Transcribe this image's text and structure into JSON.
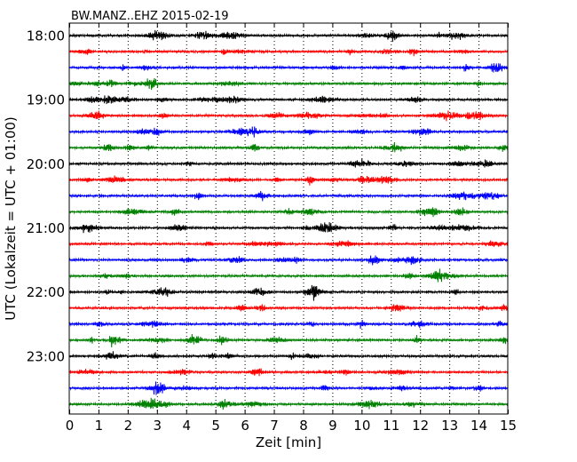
{
  "chart_data": {
    "type": "line",
    "title": "BW.MANZ..EHZ 2015-02-19",
    "xlabel": "Zeit  [min]",
    "ylabel": "UTC (Lokalzeit = UTC + 01:00)",
    "xlim": [
      0,
      15
    ],
    "x_ticks": [
      "0",
      "1",
      "2",
      "3",
      "4",
      "5",
      "6",
      "7",
      "8",
      "9",
      "10",
      "11",
      "12",
      "13",
      "14",
      "15"
    ],
    "y_tick_labels": [
      "18:00",
      "19:00",
      "20:00",
      "21:00",
      "22:00",
      "23:00"
    ],
    "y_ticks_every_n_traces": 4,
    "trace_start_times": [
      "18:00",
      "18:15",
      "18:30",
      "18:45",
      "19:00",
      "19:15",
      "19:30",
      "19:45",
      "20:00",
      "20:15",
      "20:30",
      "20:45",
      "21:00",
      "21:15",
      "21:30",
      "21:45",
      "22:00",
      "22:15",
      "22:30",
      "22:45",
      "23:00",
      "23:15",
      "23:30",
      "23:45"
    ],
    "trace_colors": [
      "#000000",
      "#ff0000",
      "#0000ff",
      "#008000"
    ],
    "trace_minutes": 15,
    "grid": {
      "x": true,
      "y": false,
      "style": "dotted"
    },
    "legend": "none"
  }
}
